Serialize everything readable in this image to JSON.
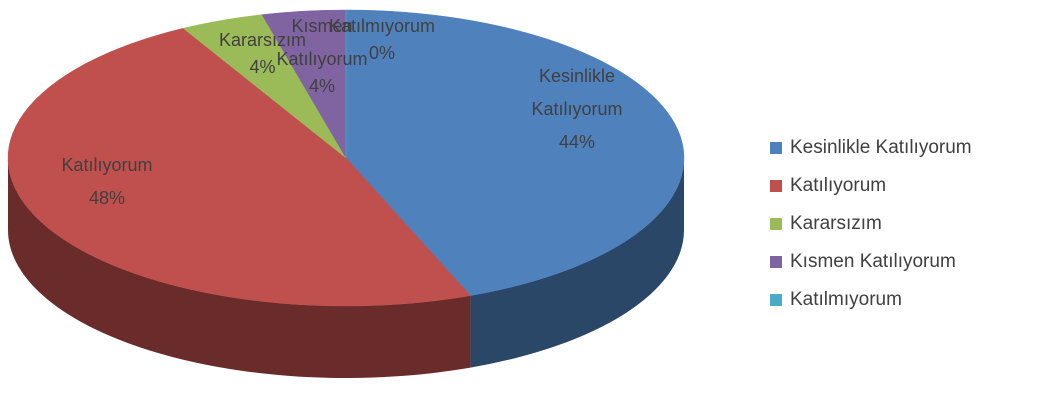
{
  "chart_data": {
    "type": "pie",
    "categories": [
      "Kesinlikle Katılıyorum",
      "Katılıyorum",
      "Kararsızım",
      "Kısmen Katılıyorum",
      "Katılmıyorum"
    ],
    "values": [
      44,
      48,
      4,
      4,
      0
    ],
    "value_labels": [
      "44%",
      "48%",
      "4%",
      "4%",
      "0%"
    ],
    "colors": [
      "#4f81bd",
      "#c0504d",
      "#9bbb59",
      "#8064a2",
      "#4bacc6"
    ],
    "legend": "right"
  }
}
